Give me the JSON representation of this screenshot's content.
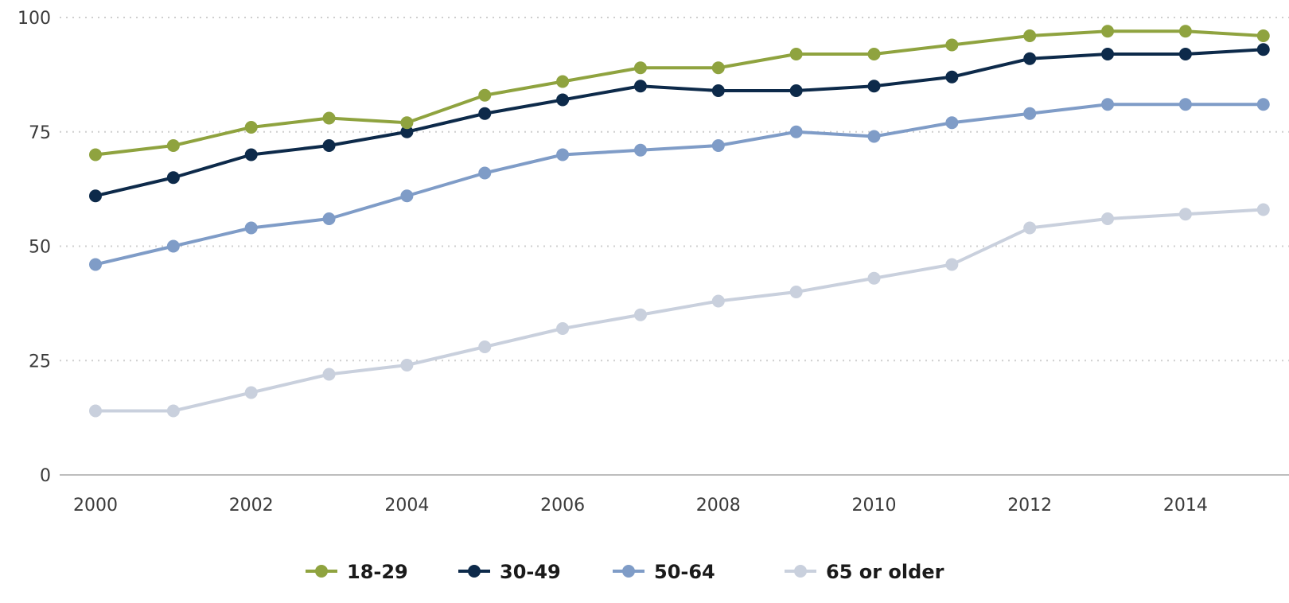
{
  "chart_data": {
    "type": "line",
    "title": "",
    "xlabel": "",
    "ylabel": "",
    "x": [
      2000,
      2001,
      2002,
      2003,
      2004,
      2005,
      2006,
      2007,
      2008,
      2009,
      2010,
      2011,
      2012,
      2013,
      2014,
      2015
    ],
    "x_ticks": [
      "2000",
      "2002",
      "2004",
      "2006",
      "2008",
      "2010",
      "2012",
      "2014"
    ],
    "y_ticks": [
      "0",
      "25",
      "50",
      "75",
      "100"
    ],
    "ylim": [
      0,
      100
    ],
    "grid": "horizontal dotted",
    "legend_position": "bottom",
    "series": [
      {
        "name": "18-29",
        "color": "#8fa33f",
        "values": [
          70,
          72,
          76,
          78,
          77,
          83,
          86,
          89,
          89,
          92,
          92,
          94,
          96,
          97,
          97,
          96
        ]
      },
      {
        "name": "30-49",
        "color": "#0d2a4a",
        "values": [
          61,
          65,
          70,
          72,
          75,
          79,
          82,
          85,
          84,
          84,
          85,
          87,
          91,
          92,
          92,
          93
        ]
      },
      {
        "name": "50-64",
        "color": "#7f9cc7",
        "values": [
          46,
          50,
          54,
          56,
          61,
          66,
          70,
          71,
          72,
          75,
          74,
          77,
          79,
          81,
          81,
          81
        ]
      },
      {
        "name": "65 or older",
        "color": "#c9d0dd",
        "values": [
          14,
          14,
          18,
          22,
          24,
          28,
          32,
          35,
          38,
          40,
          43,
          46,
          54,
          56,
          57,
          58
        ]
      }
    ]
  }
}
